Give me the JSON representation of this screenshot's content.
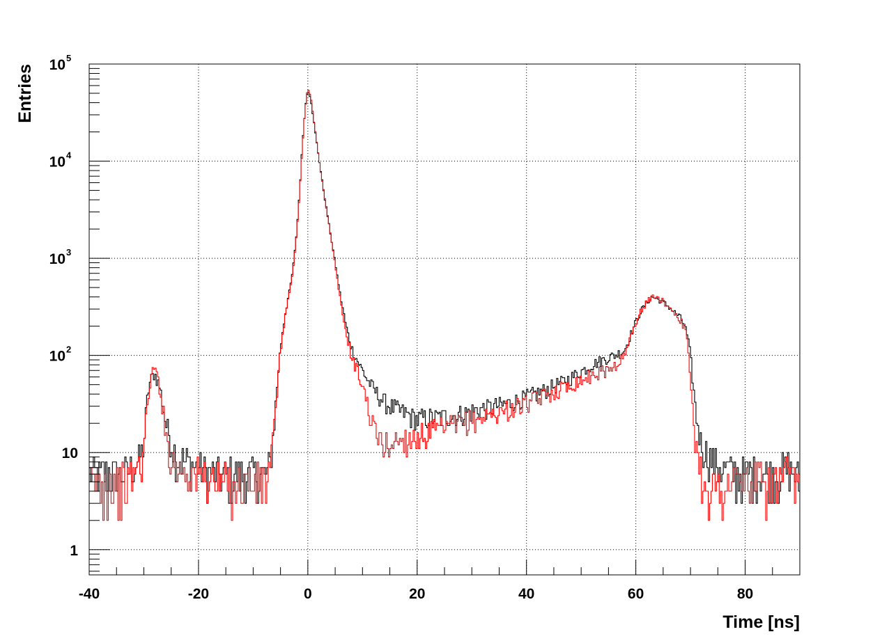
{
  "chart_data": {
    "type": "line",
    "style": "step-histogram",
    "xlabel": "Time [ns]",
    "ylabel": "Entries",
    "xlim": [
      -40,
      90
    ],
    "ylim": [
      0.55,
      100000
    ],
    "y_scale": "log",
    "grid": true,
    "x_ticks": [
      -40,
      -20,
      0,
      20,
      40,
      60,
      80
    ],
    "x_tick_labels": [
      "-40",
      "-20",
      "0",
      "20",
      "40",
      "60",
      "80"
    ],
    "y_ticks": [
      1,
      10,
      100,
      1000,
      10000,
      100000
    ],
    "y_tick_labels": [
      {
        "base": "1",
        "exp": ""
      },
      {
        "base": "10",
        "exp": ""
      },
      {
        "base": "10",
        "exp": "2"
      },
      {
        "base": "10",
        "exp": "3"
      },
      {
        "base": "10",
        "exp": "4"
      },
      {
        "base": "10",
        "exp": "5"
      }
    ],
    "series": [
      {
        "color": "#000000",
        "points": [
          [
            -40,
            6
          ],
          [
            -36,
            6
          ],
          [
            -33,
            6
          ],
          [
            -31,
            8
          ],
          [
            -30,
            12
          ],
          [
            -29.5,
            30
          ],
          [
            -29,
            50
          ],
          [
            -28.5,
            60
          ],
          [
            -28,
            65
          ],
          [
            -27.5,
            55
          ],
          [
            -27,
            45
          ],
          [
            -26.5,
            30
          ],
          [
            -26,
            20
          ],
          [
            -25,
            13
          ],
          [
            -24,
            9
          ],
          [
            -22,
            8
          ],
          [
            -20,
            7
          ],
          [
            -16,
            6
          ],
          [
            -12,
            6
          ],
          [
            -9,
            6
          ],
          [
            -7.5,
            6
          ],
          [
            -7,
            7
          ],
          [
            -6.5,
            12
          ],
          [
            -6,
            25
          ],
          [
            -5.5,
            60
          ],
          [
            -5,
            120
          ],
          [
            -4.5,
            200
          ],
          [
            -4,
            300
          ],
          [
            -3.5,
            420
          ],
          [
            -3,
            600
          ],
          [
            -2.5,
            1000
          ],
          [
            -2,
            2000
          ],
          [
            -1.5,
            5000
          ],
          [
            -1,
            15000
          ],
          [
            -0.5,
            35000
          ],
          [
            0,
            55000
          ],
          [
            0.5,
            45000
          ],
          [
            1,
            28000
          ],
          [
            1.5,
            17000
          ],
          [
            2,
            11000
          ],
          [
            2.5,
            7000
          ],
          [
            3,
            4500
          ],
          [
            3.5,
            3000
          ],
          [
            4,
            2000
          ],
          [
            5,
            900
          ],
          [
            6,
            400
          ],
          [
            7,
            200
          ],
          [
            8,
            120
          ],
          [
            9,
            90
          ],
          [
            10,
            70
          ],
          [
            11,
            55
          ],
          [
            12,
            45
          ],
          [
            13,
            38
          ],
          [
            14,
            33
          ],
          [
            16,
            28
          ],
          [
            18,
            25
          ],
          [
            20,
            22
          ],
          [
            24,
            23
          ],
          [
            28,
            25
          ],
          [
            32,
            28
          ],
          [
            36,
            31
          ],
          [
            40,
            37
          ],
          [
            44,
            45
          ],
          [
            48,
            58
          ],
          [
            52,
            80
          ],
          [
            55,
            95
          ],
          [
            57,
            105
          ],
          [
            58,
            115
          ],
          [
            59,
            160
          ],
          [
            60,
            220
          ],
          [
            61,
            290
          ],
          [
            62,
            350
          ],
          [
            63,
            400
          ],
          [
            64,
            380
          ],
          [
            65,
            350
          ],
          [
            66,
            320
          ],
          [
            67,
            280
          ],
          [
            68,
            250
          ],
          [
            69,
            200
          ],
          [
            69.5,
            150
          ],
          [
            70,
            100
          ],
          [
            70.5,
            50
          ],
          [
            71,
            25
          ],
          [
            72,
            12
          ],
          [
            74,
            8
          ],
          [
            78,
            6
          ],
          [
            82,
            6
          ],
          [
            86,
            6
          ],
          [
            88,
            7
          ],
          [
            90,
            5
          ]
        ]
      },
      {
        "color": "#ff0000",
        "points": [
          [
            -40,
            5
          ],
          [
            -36,
            5
          ],
          [
            -33,
            5
          ],
          [
            -31,
            7
          ],
          [
            -30,
            10
          ],
          [
            -29.5,
            25
          ],
          [
            -29,
            50
          ],
          [
            -28.5,
            65
          ],
          [
            -28,
            75
          ],
          [
            -27.5,
            60
          ],
          [
            -27,
            45
          ],
          [
            -26.5,
            28
          ],
          [
            -26,
            15
          ],
          [
            -25,
            9
          ],
          [
            -24,
            7
          ],
          [
            -20,
            6
          ],
          [
            -16,
            5
          ],
          [
            -12,
            5
          ],
          [
            -9,
            5
          ],
          [
            -7.5,
            5
          ],
          [
            -7,
            6
          ],
          [
            -6.5,
            10
          ],
          [
            -6,
            22
          ],
          [
            -5.5,
            55
          ],
          [
            -5,
            110
          ],
          [
            -4.5,
            190
          ],
          [
            -4,
            290
          ],
          [
            -3.5,
            400
          ],
          [
            -3,
            580
          ],
          [
            -2.5,
            950
          ],
          [
            -2,
            1900
          ],
          [
            -1.5,
            4800
          ],
          [
            -1,
            14000
          ],
          [
            -0.5,
            34000
          ],
          [
            0,
            56000
          ],
          [
            0.5,
            47000
          ],
          [
            1,
            29000
          ],
          [
            1.5,
            17500
          ],
          [
            2,
            11000
          ],
          [
            2.5,
            7000
          ],
          [
            3,
            4500
          ],
          [
            3.5,
            3000
          ],
          [
            4,
            2000
          ],
          [
            5,
            850
          ],
          [
            6,
            350
          ],
          [
            7,
            170
          ],
          [
            8,
            100
          ],
          [
            9,
            70
          ],
          [
            10,
            50
          ],
          [
            11,
            30
          ],
          [
            12,
            18
          ],
          [
            13,
            14
          ],
          [
            14,
            12
          ],
          [
            16,
            13
          ],
          [
            18,
            14
          ],
          [
            20,
            15
          ],
          [
            24,
            17
          ],
          [
            28,
            20
          ],
          [
            32,
            23
          ],
          [
            36,
            27
          ],
          [
            40,
            32
          ],
          [
            44,
            40
          ],
          [
            48,
            50
          ],
          [
            52,
            62
          ],
          [
            55,
            72
          ],
          [
            57,
            85
          ],
          [
            58,
            100
          ],
          [
            59,
            150
          ],
          [
            60,
            220
          ],
          [
            61,
            290
          ],
          [
            62,
            350
          ],
          [
            63,
            410
          ],
          [
            64,
            390
          ],
          [
            65,
            360
          ],
          [
            66,
            320
          ],
          [
            67,
            280
          ],
          [
            68,
            240
          ],
          [
            69,
            190
          ],
          [
            69.5,
            120
          ],
          [
            70,
            60
          ],
          [
            70.5,
            25
          ],
          [
            71,
            12
          ],
          [
            72,
            6
          ],
          [
            74,
            4
          ],
          [
            78,
            5
          ],
          [
            82,
            5
          ],
          [
            86,
            5
          ],
          [
            88,
            6
          ],
          [
            90,
            4
          ]
        ]
      }
    ]
  }
}
